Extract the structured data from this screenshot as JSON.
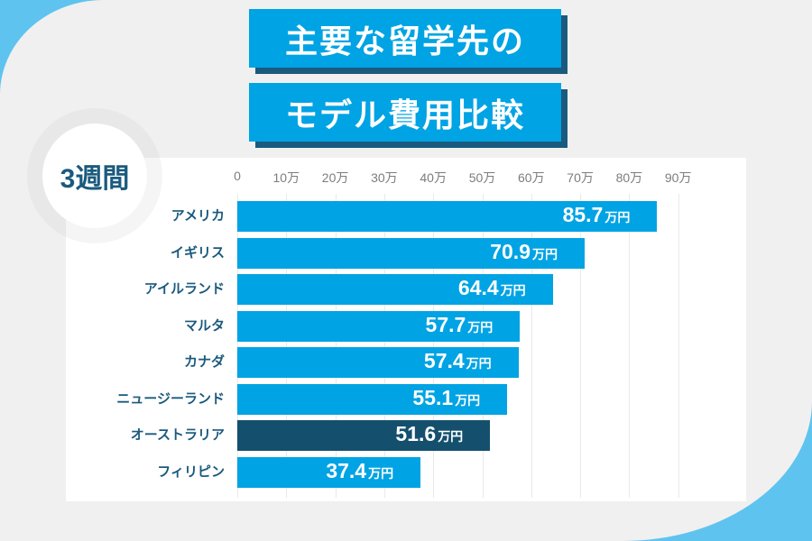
{
  "chart_data": {
    "type": "bar",
    "orientation": "horizontal",
    "title_lines": [
      "主要な留学先の",
      "モデル費用比較"
    ],
    "badge": "3週間",
    "categories": [
      "アメリカ",
      "イギリス",
      "アイルランド",
      "マルタ",
      "カナダ",
      "ニュージーランド",
      "オーストラリア",
      "フィリピン"
    ],
    "values": [
      85.7,
      70.9,
      64.4,
      57.7,
      57.4,
      55.1,
      51.6,
      37.4
    ],
    "unit": "万円",
    "highlight_index": 6,
    "x_ticks": [
      "0",
      "10万",
      "20万",
      "30万",
      "40万",
      "50万",
      "60万",
      "70万",
      "80万",
      "90万"
    ],
    "x_tick_values": [
      0,
      10,
      20,
      30,
      40,
      50,
      60,
      70,
      80,
      90
    ],
    "xlim": [
      0,
      90
    ],
    "grid": true,
    "legend": "none"
  },
  "colors": {
    "bar": "#00A3E3",
    "bar_highlight": "#14506E",
    "title_bg": "#00A3E3",
    "title_shadow": "#1A5A7E",
    "label": "#1A5A7E",
    "tick": "#7D7D7D",
    "corner": "#5FC3EF",
    "background": "#F0F0F1",
    "gridline": "#E9E9E9",
    "card": "#FFFFFF",
    "value_text": "#FFFFFF"
  }
}
